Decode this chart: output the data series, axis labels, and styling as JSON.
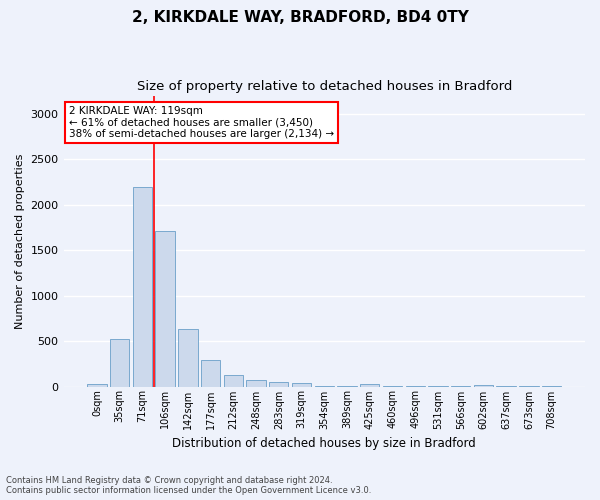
{
  "title1": "2, KIRKDALE WAY, BRADFORD, BD4 0TY",
  "title2": "Size of property relative to detached houses in Bradford",
  "xlabel": "Distribution of detached houses by size in Bradford",
  "ylabel": "Number of detached properties",
  "bar_color": "#ccd9ec",
  "bar_edge_color": "#6a9fc8",
  "categories": [
    "0sqm",
    "35sqm",
    "71sqm",
    "106sqm",
    "142sqm",
    "177sqm",
    "212sqm",
    "248sqm",
    "283sqm",
    "319sqm",
    "354sqm",
    "389sqm",
    "425sqm",
    "460sqm",
    "496sqm",
    "531sqm",
    "566sqm",
    "602sqm",
    "637sqm",
    "673sqm",
    "708sqm"
  ],
  "values": [
    25,
    520,
    2190,
    1710,
    635,
    295,
    130,
    75,
    45,
    40,
    10,
    5,
    30,
    5,
    5,
    5,
    5,
    20,
    5,
    5,
    5
  ],
  "ylim": [
    0,
    3200
  ],
  "yticks": [
    0,
    500,
    1000,
    1500,
    2000,
    2500,
    3000
  ],
  "vline_x": 2.5,
  "annotation_text": "2 KIRKDALE WAY: 119sqm\n← 61% of detached houses are smaller (3,450)\n38% of semi-detached houses are larger (2,134) →",
  "annotation_box_color": "white",
  "annotation_border_color": "red",
  "vline_color": "red",
  "footer_line1": "Contains HM Land Registry data © Crown copyright and database right 2024.",
  "footer_line2": "Contains public sector information licensed under the Open Government Licence v3.0.",
  "background_color": "#eef2fb",
  "grid_color": "#ffffff",
  "title1_fontsize": 11,
  "title2_fontsize": 9.5
}
